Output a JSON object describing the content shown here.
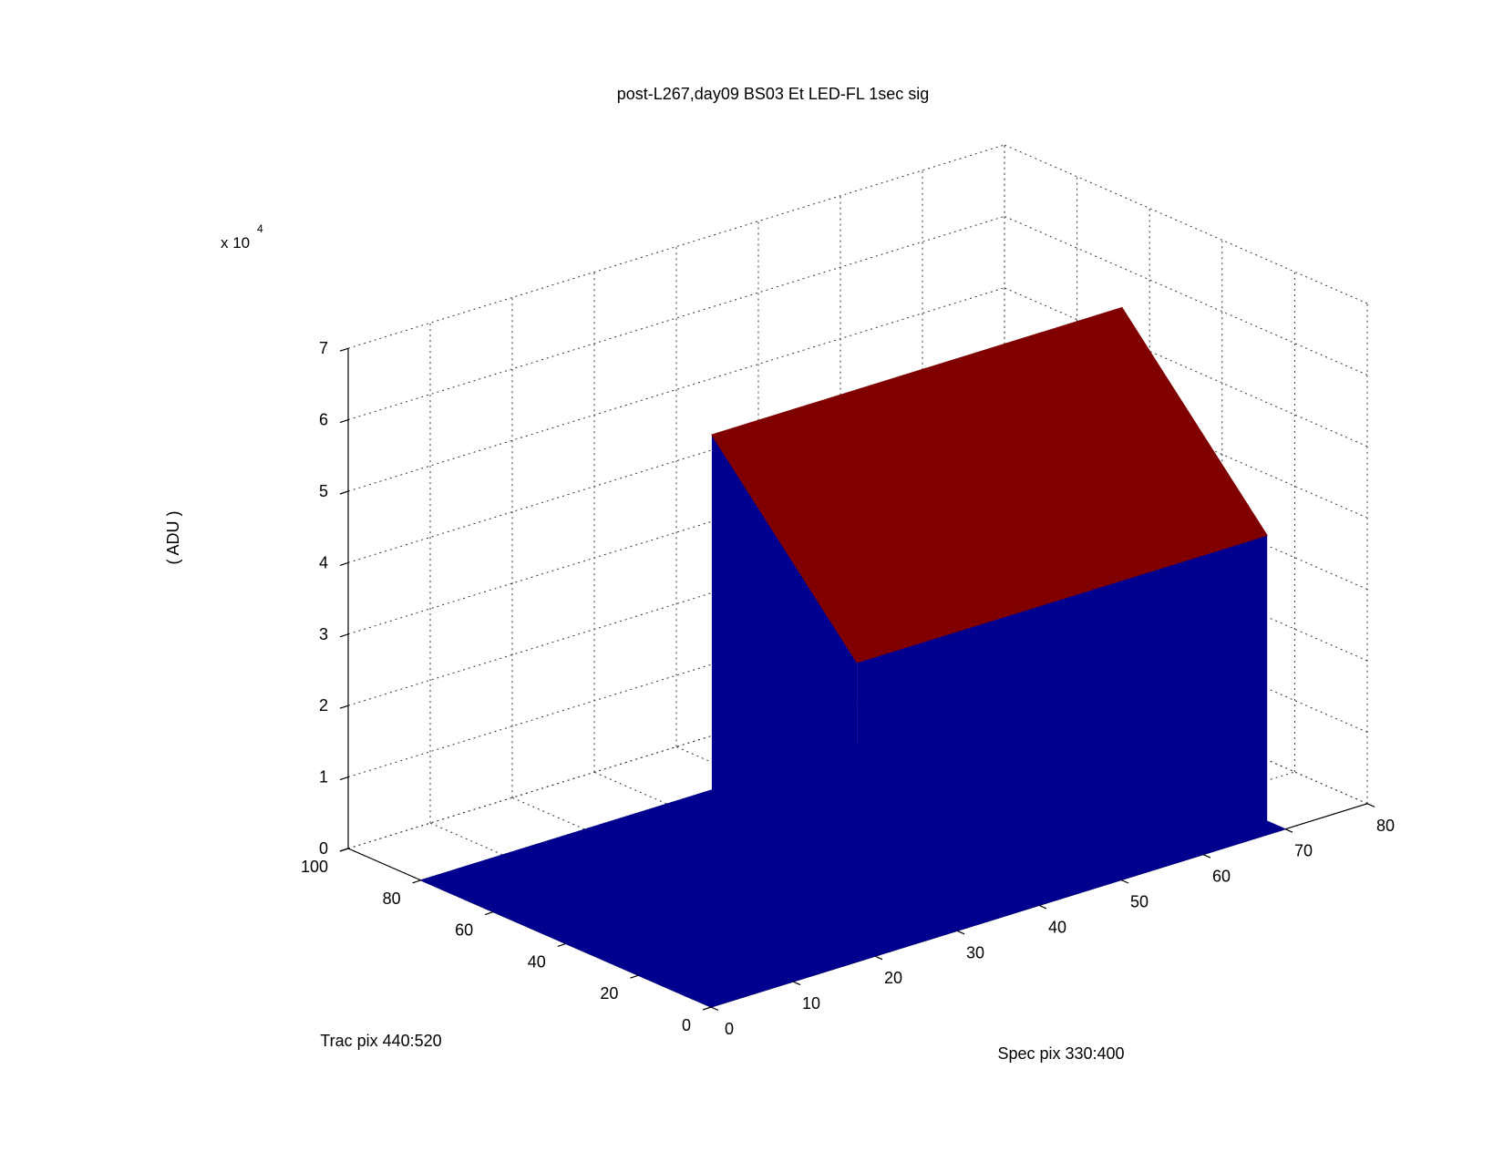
{
  "chart_data": {
    "type": "surface3d",
    "title": "post-L267,day09 BS03 Et LED-FL 1sec sig",
    "xlabel": "Spec pix 330:400",
    "ylabel": "Trac pix 440:520",
    "zlabel": "( ADU )",
    "z_exponent_label": "x 10",
    "z_exponent_power": "4",
    "xlim": [
      0,
      80
    ],
    "ylim": [
      0,
      100
    ],
    "zlim": [
      0,
      70000
    ],
    "x_ticks": [
      "0",
      "10",
      "20",
      "30",
      "40",
      "50",
      "60",
      "70",
      "80"
    ],
    "y_ticks": [
      "0",
      "20",
      "40",
      "60",
      "80",
      "100"
    ],
    "z_ticks": [
      "0",
      "1",
      "2",
      "3",
      "4",
      "5",
      "6",
      "7"
    ],
    "grid": true,
    "surface": {
      "domain_x": [
        0,
        70
      ],
      "domain_y": [
        0,
        80
      ],
      "plateau_x": [
        20,
        70
      ],
      "plateau_y": [
        5,
        45
      ],
      "plateau_z_near": 40000,
      "plateau_z_far": 63000,
      "base_z": 0
    },
    "colors": {
      "side_walls": "#00008f",
      "plateau_top": "#800000",
      "grid": "#333333",
      "axes": "#000000"
    }
  }
}
